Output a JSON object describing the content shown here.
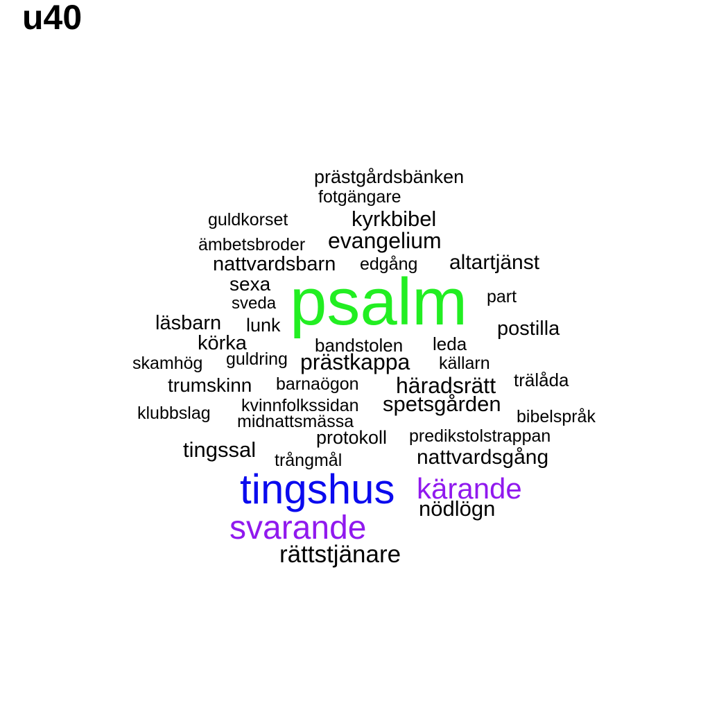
{
  "title": "u40",
  "colors": {
    "background": "#ffffff",
    "default": "#000000",
    "top": "#22ee22",
    "second": "#0a0aee",
    "third": "#9019ee"
  },
  "words": [
    {
      "text": "psalm",
      "color": "#22ee22"
    },
    {
      "text": "tingshus",
      "color": "#0a0aee"
    },
    {
      "text": "svarande",
      "color": "#9019ee"
    },
    {
      "text": "kärande",
      "color": "#9019ee"
    },
    {
      "text": "rättstjänare",
      "color": "#000000"
    },
    {
      "text": "prästgårdsbänken",
      "color": "#000000"
    },
    {
      "text": "fotgängare",
      "color": "#000000"
    },
    {
      "text": "guldkorset",
      "color": "#000000"
    },
    {
      "text": "kyrkbibel",
      "color": "#000000"
    },
    {
      "text": "ämbetsbroder",
      "color": "#000000"
    },
    {
      "text": "evangelium",
      "color": "#000000"
    },
    {
      "text": "nattvardsbarn",
      "color": "#000000"
    },
    {
      "text": "edgång",
      "color": "#000000"
    },
    {
      "text": "altartjänst",
      "color": "#000000"
    },
    {
      "text": "sexa",
      "color": "#000000"
    },
    {
      "text": "sveda",
      "color": "#000000"
    },
    {
      "text": "part",
      "color": "#000000"
    },
    {
      "text": "läsbarn",
      "color": "#000000"
    },
    {
      "text": "lunk",
      "color": "#000000"
    },
    {
      "text": "postilla",
      "color": "#000000"
    },
    {
      "text": "körka",
      "color": "#000000"
    },
    {
      "text": "bandstolen",
      "color": "#000000"
    },
    {
      "text": "leda",
      "color": "#000000"
    },
    {
      "text": "skamhög",
      "color": "#000000"
    },
    {
      "text": "guldring",
      "color": "#000000"
    },
    {
      "text": "prästkappa",
      "color": "#000000"
    },
    {
      "text": "källarn",
      "color": "#000000"
    },
    {
      "text": "trumskinn",
      "color": "#000000"
    },
    {
      "text": "barnaögon",
      "color": "#000000"
    },
    {
      "text": "häradsrätt",
      "color": "#000000"
    },
    {
      "text": "trälåda",
      "color": "#000000"
    },
    {
      "text": "klubbslag",
      "color": "#000000"
    },
    {
      "text": "kvinnfolkssidan",
      "color": "#000000"
    },
    {
      "text": "spetsgården",
      "color": "#000000"
    },
    {
      "text": "midnattsmässa",
      "color": "#000000"
    },
    {
      "text": "bibelspråk",
      "color": "#000000"
    },
    {
      "text": "protokoll",
      "color": "#000000"
    },
    {
      "text": "predikstolstrappan",
      "color": "#000000"
    },
    {
      "text": "tingssal",
      "color": "#000000"
    },
    {
      "text": "trångmål",
      "color": "#000000"
    },
    {
      "text": "nattvardsgång",
      "color": "#000000"
    },
    {
      "text": "nödlögn",
      "color": "#000000"
    }
  ]
}
